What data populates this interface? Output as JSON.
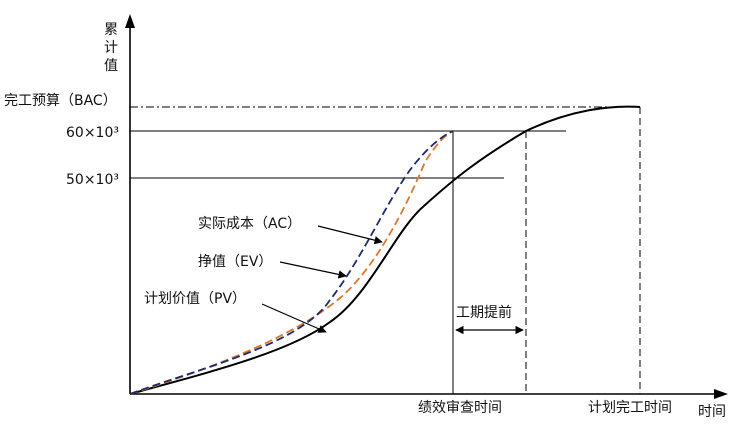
{
  "axes": {
    "y_label_chars": [
      "累",
      "计",
      "值"
    ],
    "x_label": "时间"
  },
  "y_levels": {
    "bac": "完工预算（BAC）",
    "level_60": "60×10³",
    "level_50": "50×10³"
  },
  "x_marks": {
    "review_time": "绩效审查时间",
    "planned_finish": "计划完工时间"
  },
  "annotation": {
    "schedule_ahead": "工期提前"
  },
  "curves": {
    "ac": {
      "label": "实际成本（AC）",
      "color": "#1f2a6b",
      "style": "dashed"
    },
    "ev": {
      "label": "挣值（EV）",
      "color": "#d9782d",
      "style": "dashed"
    },
    "pv": {
      "label": "计划价值（PV）",
      "color": "#000000",
      "style": "solid"
    }
  }
}
